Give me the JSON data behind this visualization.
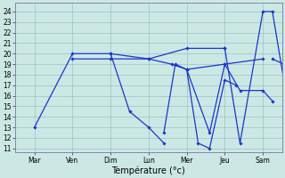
{
  "background_color": "#cce8e5",
  "grid_color": "#99c4c0",
  "line_color": "#1a35cc",
  "marker_color": "#1a35cc",
  "xlabel": "Température (°c)",
  "ylim_min": 10.6,
  "ylim_max": 24.8,
  "yticks": [
    11,
    12,
    13,
    14,
    15,
    16,
    17,
    18,
    19,
    20,
    21,
    22,
    23,
    24
  ],
  "x_labels": [
    "Mar",
    "Ven",
    "Dim",
    "Lun",
    "Mer",
    "Jeu",
    "Sam"
  ],
  "lines": [
    {
      "x": [
        0,
        1,
        2,
        3,
        4,
        5
      ],
      "y": [
        13.0,
        20.0,
        20.0,
        19.5,
        20.5,
        20.5
      ]
    },
    {
      "x": [
        1,
        2,
        3,
        3.6,
        4,
        5,
        6
      ],
      "y": [
        19.5,
        19.5,
        19.5,
        19.0,
        18.5,
        19.0,
        19.5
      ]
    },
    {
      "x": [
        2,
        2.5,
        3,
        3.4
      ],
      "y": [
        20.0,
        14.5,
        13.0,
        11.5
      ]
    },
    {
      "x": [
        3.4,
        3.7,
        4,
        4.3,
        4.6,
        5,
        5.3
      ],
      "y": [
        12.5,
        19.0,
        18.5,
        11.5,
        11.0,
        17.5,
        17.0
      ]
    },
    {
      "x": [
        4,
        4.6,
        5,
        5.4,
        6,
        6.25
      ],
      "y": [
        18.5,
        12.5,
        19.0,
        16.5,
        16.5,
        15.5
      ]
    },
    {
      "x": [
        5,
        5.4,
        6,
        6.25,
        6.55
      ],
      "y": [
        20.5,
        11.5,
        24.0,
        24.0,
        17.5
      ]
    },
    {
      "x": [
        6.25,
        6.55
      ],
      "y": [
        19.5,
        19.0
      ]
    }
  ]
}
